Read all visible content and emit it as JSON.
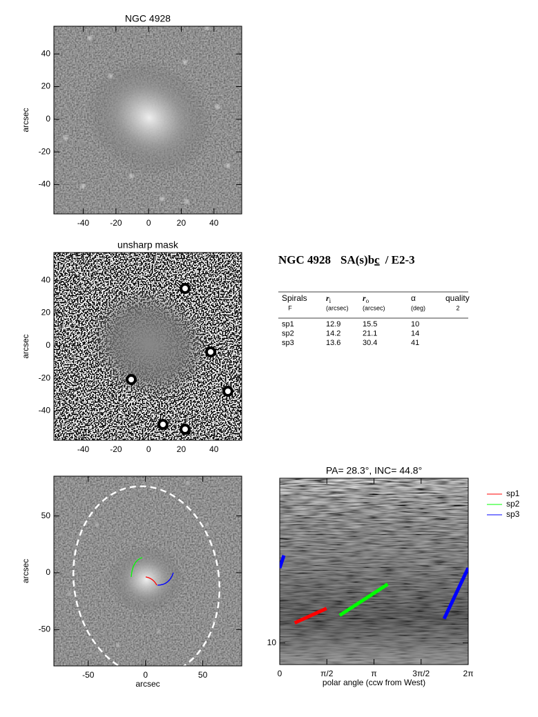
{
  "chart_data": [
    {
      "type": "image",
      "title": "NGC 4928",
      "y_label": "arcsec",
      "xlim": [
        -58,
        57
      ],
      "ylim": [
        -58,
        57
      ],
      "xticks": [
        -40,
        -20,
        0,
        20,
        40
      ],
      "yticks": [
        -40,
        -20,
        0,
        20,
        40
      ]
    },
    {
      "type": "image",
      "title": "unsharp mask",
      "y_label": "arcsec",
      "xlim": [
        -58,
        57
      ],
      "ylim": [
        -58,
        57
      ],
      "xticks": [
        -40,
        -20,
        0,
        20,
        40
      ],
      "yticks": [
        -40,
        -20,
        0,
        20,
        40
      ]
    },
    {
      "type": "image",
      "x_label": "arcsec",
      "y_label": "arcsec",
      "xlim": [
        -80,
        84
      ],
      "ylim": [
        -82,
        85
      ],
      "xticks": [
        -50,
        0,
        50
      ],
      "yticks": [
        -50,
        0,
        50
      ]
    },
    {
      "type": "line",
      "title": "PA= 28.3°, INC= 44.8°",
      "x_label": "polar angle (ccw from West)",
      "xlim": [
        0,
        6.2832
      ],
      "ylim": [
        7.6,
        81
      ],
      "log_y": true,
      "xticks": [
        0,
        {
          "value": 1.5708,
          "label": "π/2"
        },
        {
          "value": 3.1416,
          "label": "π"
        },
        {
          "value": 4.7124,
          "label": "3π/2"
        },
        {
          "value": 6.2832,
          "label": "2π"
        }
      ],
      "yticks": [
        10
      ],
      "legend": "outside right",
      "series": [
        {
          "name": "sp1",
          "color": "#ff0000",
          "x": [
            0.5,
            1.56
          ],
          "values": [
            12.9,
            15.5
          ]
        },
        {
          "name": "sp2",
          "color": "#00ff00",
          "x": [
            2.0,
            3.6
          ],
          "values": [
            14.2,
            21.1
          ]
        },
        {
          "name": "sp3",
          "color": "#0000ff",
          "x": [
            5.48,
            6.28,
            null,
            0,
            0.14
          ],
          "values": [
            13.6,
            25.9,
            null,
            25.9,
            30.4
          ]
        }
      ]
    }
  ],
  "summary": {
    "galaxy": "NGC 4928",
    "type": "SA(s)b",
    "type_suffix": "c",
    "class": "/ E2-3"
  },
  "table": {
    "columns": [
      {
        "name": "Spirals",
        "note": "F"
      },
      {
        "name": "r",
        "sub": "i",
        "note": "(arcsec)"
      },
      {
        "name": "r",
        "sub": "o",
        "note": "(arcsec)"
      },
      {
        "name": "α",
        "note": "(deg)"
      },
      {
        "name": "quality",
        "note": "2"
      }
    ],
    "rows": [
      [
        "sp1",
        12.9,
        15.5,
        10
      ],
      [
        "sp2",
        14.2,
        21.1,
        14
      ],
      [
        "sp3",
        13.6,
        30.4,
        41
      ]
    ]
  }
}
